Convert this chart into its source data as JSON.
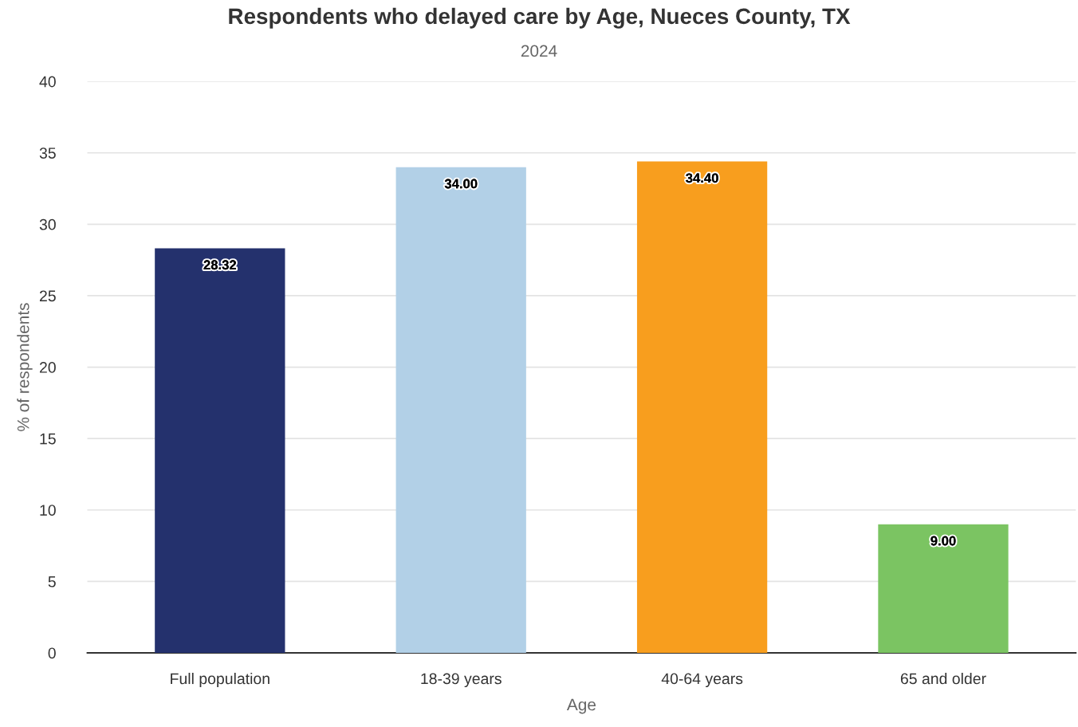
{
  "chart_data": {
    "type": "bar",
    "title": "Respondents who delayed care by Age, Nueces County, TX",
    "subtitle": "2024",
    "xlabel": "Age",
    "ylabel": "% of respondents",
    "categories": [
      "Full population",
      "18-39 years",
      "40-64 years",
      "65 and older"
    ],
    "values": [
      28.32,
      34.0,
      34.4,
      9.0
    ],
    "colors": [
      "#24316d",
      "#b2d0e7",
      "#f89e1e",
      "#7bc462"
    ],
    "value_labels": [
      "28.32",
      "34.00",
      "34.40",
      "9.00"
    ],
    "ylim": [
      0,
      40
    ],
    "yticks": [
      0,
      5,
      10,
      15,
      20,
      25,
      30,
      35,
      40
    ],
    "grid": "y",
    "legend": false
  }
}
